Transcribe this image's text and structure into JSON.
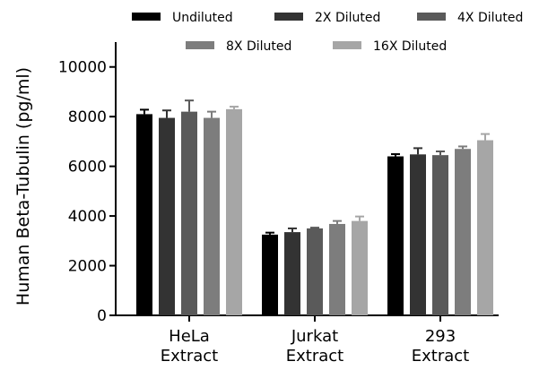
{
  "chart_data": {
    "type": "bar",
    "categories": [
      [
        "HeLa",
        "Extract"
      ],
      [
        "Jurkat",
        "Extract"
      ],
      [
        "293",
        "Extract"
      ]
    ],
    "ylabel": "Human Beta-Tubulin (pg/ml)",
    "ylim": [
      0,
      11000
    ],
    "yticks": [
      0,
      2000,
      4000,
      6000,
      8000,
      10000
    ],
    "grid": false,
    "legend_placement": "top",
    "series": [
      {
        "name": "Undiluted",
        "color": "#000000",
        "values": [
          8100,
          3250,
          6400
        ],
        "errors": [
          180,
          80,
          90
        ]
      },
      {
        "name": "2X Diluted",
        "color": "#333333",
        "values": [
          7950,
          3350,
          6480
        ],
        "errors": [
          300,
          150,
          250
        ]
      },
      {
        "name": "4X Diluted",
        "color": "#5a5a5a",
        "values": [
          8200,
          3500,
          6450
        ],
        "errors": [
          450,
          30,
          150
        ]
      },
      {
        "name": "8X Diluted",
        "color": "#7d7d7d",
        "values": [
          7950,
          3680,
          6700
        ],
        "errors": [
          250,
          120,
          100
        ]
      },
      {
        "name": "16X Diluted",
        "color": "#a6a6a6",
        "values": [
          8300,
          3800,
          7050
        ],
        "errors": [
          100,
          180,
          250
        ]
      }
    ]
  }
}
